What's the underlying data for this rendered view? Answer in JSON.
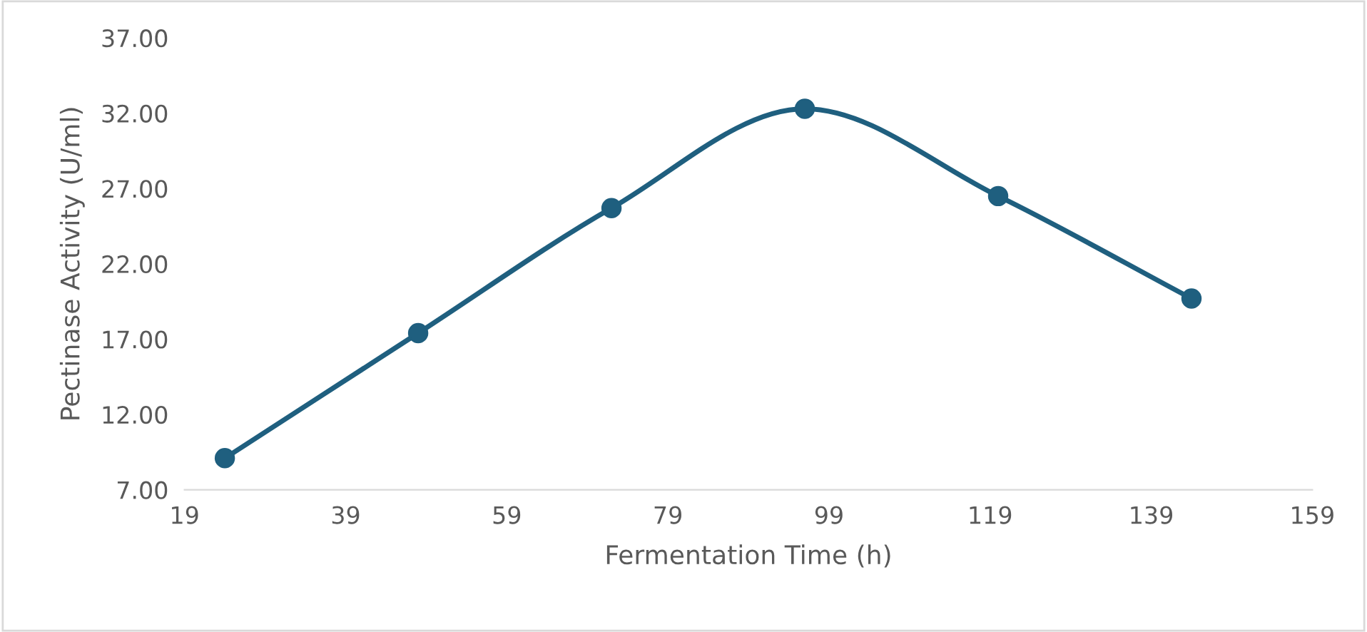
{
  "chart_data": {
    "type": "line",
    "xlabel": "Fermentation Time (h)",
    "ylabel": "Pectinase Activity (U/ml)",
    "x": [
      24,
      48,
      72,
      96,
      120,
      144
    ],
    "series": [
      {
        "color": "#1f5f7f",
        "values": [
          9.1,
          17.4,
          25.7,
          32.3,
          26.5,
          19.7
        ]
      }
    ],
    "xlim": [
      19,
      159
    ],
    "xticks": [
      19,
      39,
      59,
      79,
      99,
      119,
      139,
      159
    ],
    "ylim": [
      7,
      37
    ],
    "yticks": [
      {
        "value": 7,
        "label": "7.00"
      },
      {
        "value": 12,
        "label": "12.00"
      },
      {
        "value": 17,
        "label": "17.00"
      },
      {
        "value": 22,
        "label": "22.00"
      },
      {
        "value": 27,
        "label": "27.00"
      },
      {
        "value": 32,
        "label": "32.00"
      },
      {
        "value": 37,
        "label": "37.00"
      }
    ],
    "grid": false,
    "legend": false,
    "marker": "circle",
    "line_style": "solid"
  }
}
